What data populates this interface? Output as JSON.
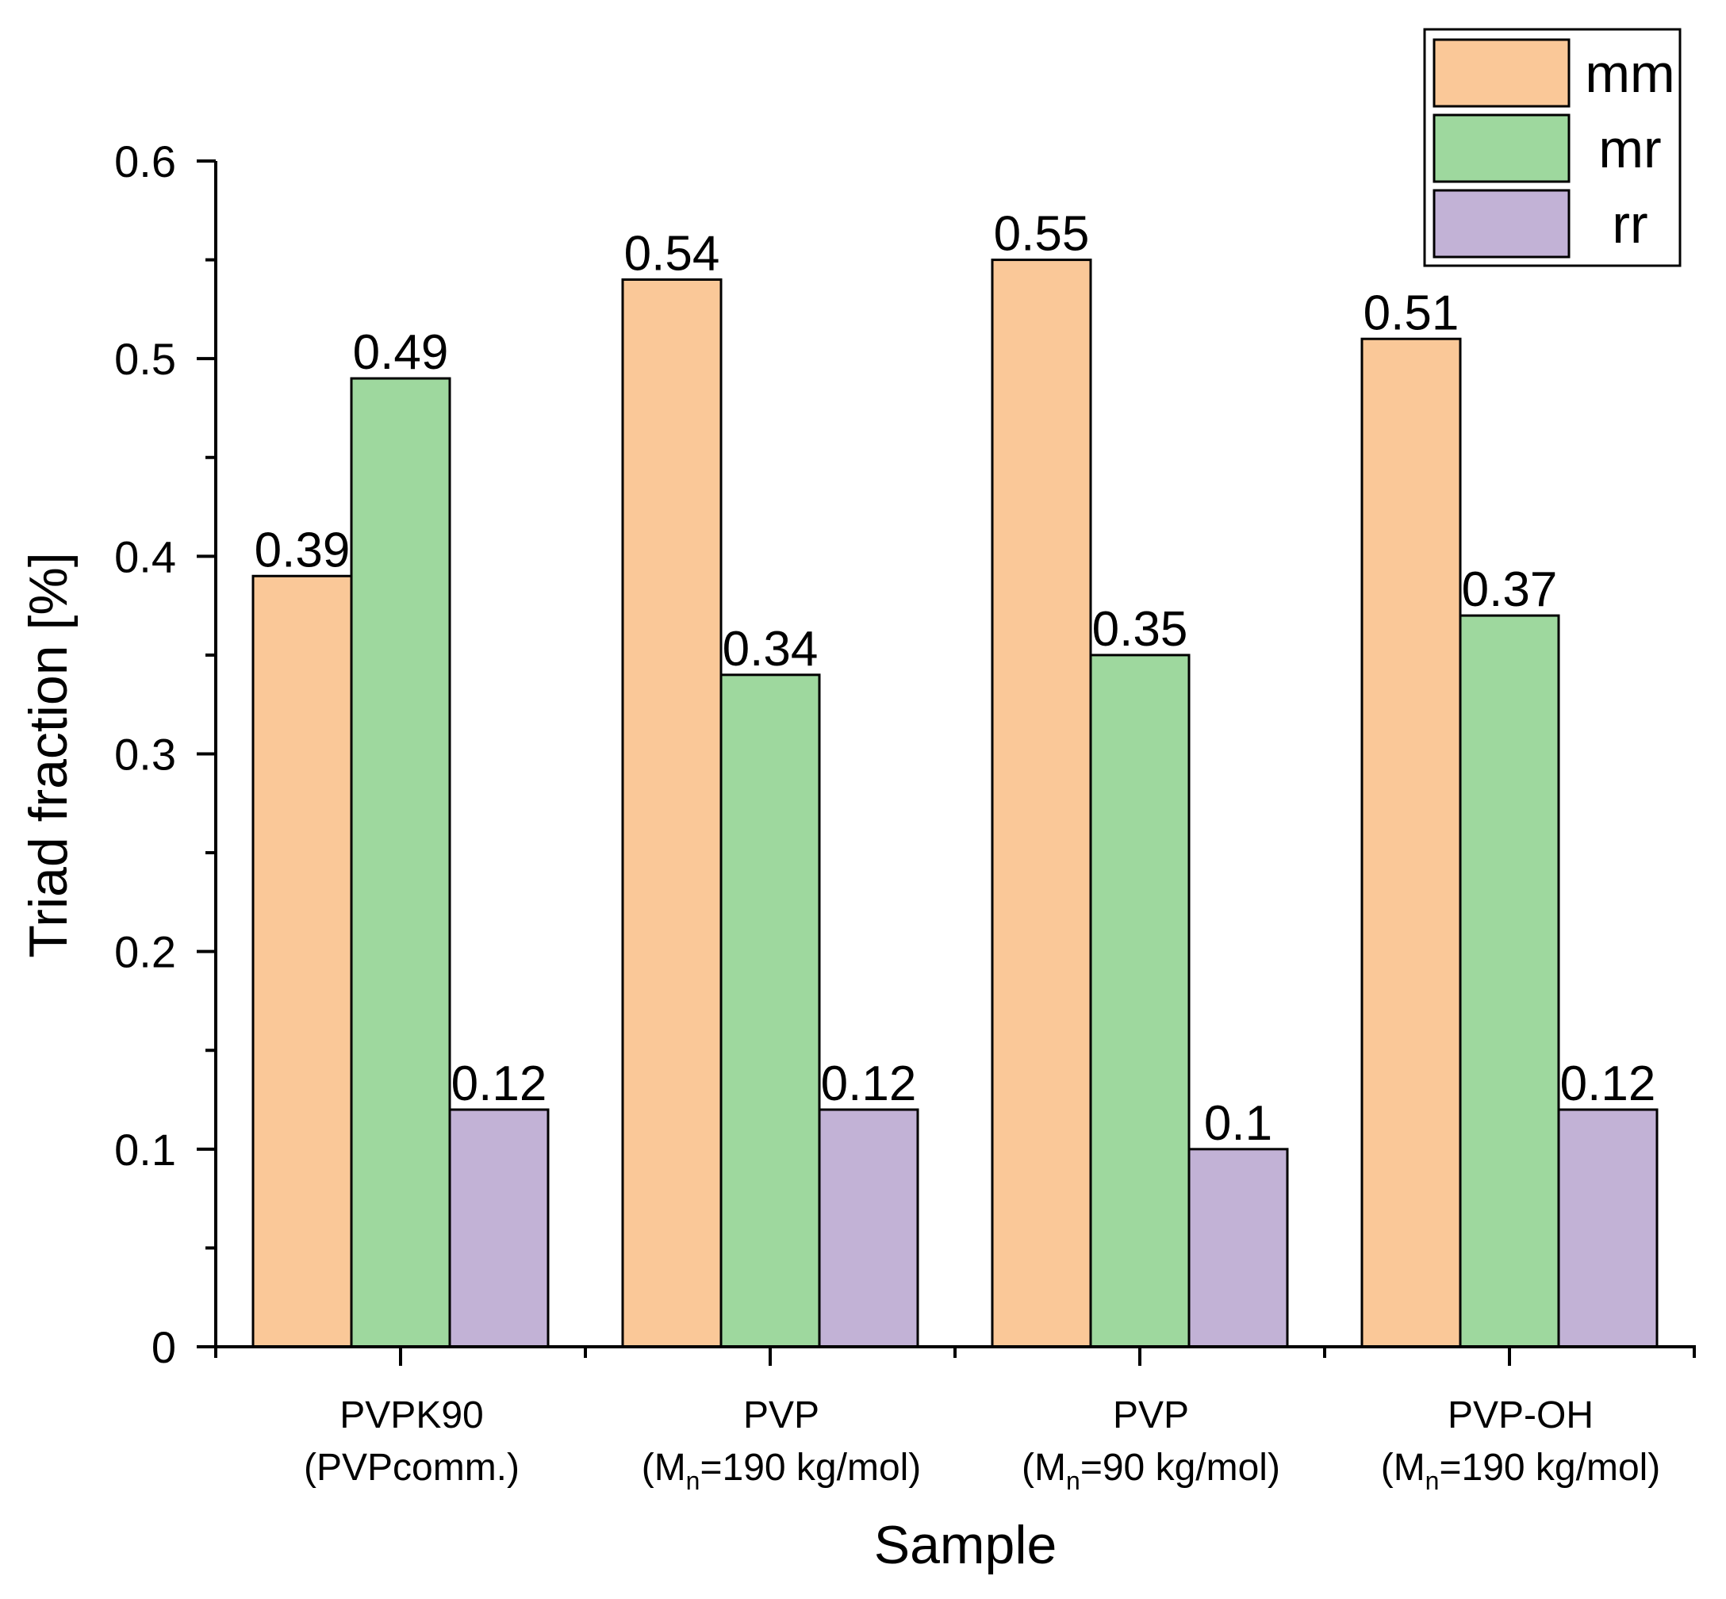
{
  "chart_data": {
    "type": "bar",
    "title": "",
    "xlabel": "Sample",
    "ylabel": "Triad fraction [%]",
    "ylim": [
      0,
      0.6
    ],
    "yticks": [
      "0",
      "0.1",
      "0.2",
      "0.3",
      "0.4",
      "0.5",
      "0.6"
    ],
    "categories": [
      {
        "line1": "PVPK90",
        "line2": "(PVPcomm.)",
        "line2_prefix": "",
        "line2_sub": "",
        "line2_suffix": ""
      },
      {
        "line1": "PVP",
        "line2": "",
        "line2_prefix": "(M",
        "line2_sub": "n",
        "line2_suffix": "=190 kg/mol)"
      },
      {
        "line1": "PVP",
        "line2": "",
        "line2_prefix": "(M",
        "line2_sub": "n",
        "line2_suffix": "=90 kg/mol)"
      },
      {
        "line1": "PVP-OH",
        "line2": "",
        "line2_prefix": "(M",
        "line2_sub": "n",
        "line2_suffix": "=190 kg/mol)"
      }
    ],
    "series": [
      {
        "name": "mm",
        "color": "#FAC898",
        "values": [
          0.39,
          0.54,
          0.55,
          0.51
        ],
        "labels": [
          "0.39",
          "0.54",
          "0.55",
          "0.51"
        ]
      },
      {
        "name": "mr",
        "color": "#9ED89E",
        "values": [
          0.49,
          0.34,
          0.35,
          0.37
        ],
        "labels": [
          "0.49",
          "0.34",
          "0.35",
          "0.37"
        ]
      },
      {
        "name": "rr",
        "color": "#C2B2D6",
        "values": [
          0.12,
          0.12,
          0.1,
          0.12
        ],
        "labels": [
          "0.12",
          "0.12",
          "0.1",
          "0.12"
        ]
      }
    ],
    "legend_position": "top-right",
    "grid": false
  }
}
